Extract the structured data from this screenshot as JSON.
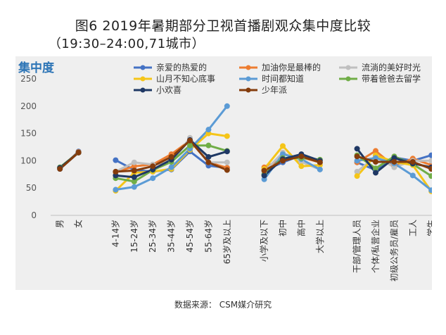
{
  "chart_data": {
    "type": "line",
    "title": "图6  2019年暑期部分卫视首播剧观众集中度比较",
    "subtitle": "（19:30–24:00,71城市）",
    "ylabel": "集中度",
    "ylim": [
      0,
      250
    ],
    "yticks": [
      0,
      50,
      100,
      150,
      200,
      250
    ],
    "categories": [
      "男",
      "女",
      "",
      "4-14岁",
      "15-24岁",
      "25-34岁",
      "35-44岁",
      "45-54岁",
      "55-64岁",
      "65岁及以上",
      "",
      "小学及以下",
      "初中",
      "高中",
      "大学以上",
      "",
      "干部/管理人员",
      "个体/私营企业",
      "初级公务员/雇员",
      "工人",
      "学生"
    ],
    "series": [
      {
        "name": "亲爱的热爱的",
        "color": "#4472C4",
        "values": [
          85,
          117,
          null,
          101,
          83,
          80,
          84,
          117,
          91,
          87,
          null,
          82,
          97,
          110,
          97,
          null,
          97,
          83,
          106,
          100,
          110
        ]
      },
      {
        "name": "加油你是最棒的",
        "color": "#ED7D31",
        "values": [
          87,
          116,
          null,
          79,
          90,
          93,
          112,
          137,
          97,
          87,
          null,
          88,
          103,
          106,
          97,
          null,
          97,
          118,
          90,
          104,
          92
        ]
      },
      {
        "name": "流淌的美好时光",
        "color": "#BFBFBF",
        "values": [
          86,
          115,
          null,
          80,
          97,
          93,
          97,
          142,
          97,
          97,
          null,
          80,
          115,
          98,
          84,
          null,
          80,
          108,
          88,
          100,
          100
        ]
      },
      {
        "name": "山月不知心底事",
        "color": "#F5C518",
        "values": [
          87,
          115,
          null,
          45,
          78,
          80,
          85,
          120,
          150,
          145,
          null,
          85,
          127,
          90,
          92,
          null,
          72,
          110,
          98,
          92,
          44
        ]
      },
      {
        "name": "时间都知道",
        "color": "#5B9BD5",
        "values": [
          85,
          115,
          null,
          47,
          52,
          68,
          88,
          122,
          157,
          200,
          null,
          66,
          112,
          103,
          84,
          null,
          100,
          105,
          95,
          73,
          46
        ]
      },
      {
        "name": "带着爸爸去留学",
        "color": "#70AD47",
        "values": [
          88,
          115,
          null,
          68,
          62,
          83,
          98,
          128,
          128,
          118,
          null,
          75,
          105,
          105,
          102,
          null,
          110,
          86,
          108,
          94,
          72
        ]
      },
      {
        "name": "小欢喜",
        "color": "#1F3864",
        "values": [
          87,
          115,
          null,
          73,
          70,
          84,
          102,
          138,
          107,
          117,
          null,
          73,
          103,
          112,
          100,
          null,
          122,
          78,
          105,
          95,
          88
        ]
      },
      {
        "name": "少年派",
        "color": "#843C0C",
        "values": [
          85,
          115,
          null,
          80,
          82,
          90,
          107,
          137,
          97,
          83,
          null,
          82,
          100,
          108,
          97,
          null,
          108,
          98,
          98,
          98,
          85
        ]
      }
    ]
  },
  "source": "数据来源：  CSM媒介研究"
}
